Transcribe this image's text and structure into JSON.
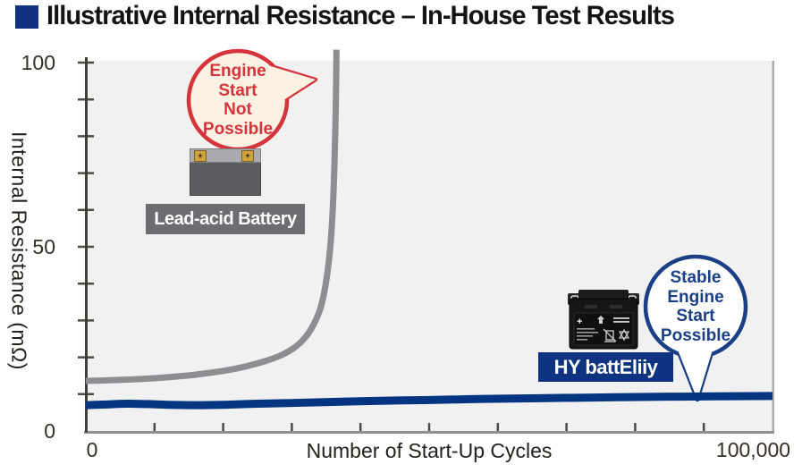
{
  "title": "Illustrative Internal Resistance – In-House Test Results",
  "chart_data": {
    "type": "line",
    "title": "Illustrative Internal Resistance – In-House Test Results",
    "xlabel": "Number of Start-Up Cycles",
    "ylabel": "Internal Resistance (mΩ)",
    "xlim": [
      0,
      100000
    ],
    "ylim": [
      0,
      100
    ],
    "x_tick_step": 10000,
    "y_tick_step": 10,
    "grid": false,
    "legend_position": "none",
    "x_tick_labels": [
      {
        "value": 0,
        "label": "0"
      },
      {
        "value": 100000,
        "label": "100,000"
      }
    ],
    "y_tick_labels": [
      {
        "value": 0,
        "label": "0"
      },
      {
        "value": 50,
        "label": "50"
      },
      {
        "value": 100,
        "label": "100"
      }
    ],
    "series": [
      {
        "name": "Lead-acid Battery",
        "color": "#8c8e91",
        "stroke_width": 7,
        "points": [
          [
            0,
            13.6
          ],
          [
            4000,
            13.8
          ],
          [
            8000,
            14.1
          ],
          [
            12000,
            14.6
          ],
          [
            16000,
            15.3
          ],
          [
            20000,
            16.3
          ],
          [
            23000,
            17.4
          ],
          [
            26000,
            18.9
          ],
          [
            28500,
            20.6
          ],
          [
            30500,
            22.8
          ],
          [
            32000,
            25.5
          ],
          [
            33200,
            29
          ],
          [
            34200,
            33.5
          ],
          [
            34900,
            39.5
          ],
          [
            35500,
            48
          ],
          [
            35900,
            58
          ],
          [
            36200,
            72
          ],
          [
            36400,
            88
          ],
          [
            36500,
            103.5
          ]
        ]
      },
      {
        "name": "HY battEliiy",
        "color": "#053580",
        "stroke_width": 9,
        "points": [
          [
            0,
            7.0
          ],
          [
            3000,
            7.2
          ],
          [
            6000,
            7.4
          ],
          [
            9000,
            7.3
          ],
          [
            12000,
            7.1
          ],
          [
            16000,
            7.0
          ],
          [
            20000,
            7.1
          ],
          [
            25000,
            7.4
          ],
          [
            30000,
            7.6
          ],
          [
            36000,
            7.9
          ],
          [
            43000,
            8.2
          ],
          [
            50000,
            8.4
          ],
          [
            58000,
            8.7
          ],
          [
            66000,
            8.9
          ],
          [
            75000,
            9.1
          ],
          [
            85000,
            9.3
          ],
          [
            100000,
            9.5
          ]
        ]
      }
    ]
  },
  "annotations": {
    "red_bubble": {
      "lines": [
        "Engine",
        "Start",
        "Not",
        "Possible"
      ]
    },
    "blue_bubble": {
      "lines": [
        "Stable",
        "Engine",
        "Start",
        "Possible"
      ]
    },
    "lead_acid_label": "Lead-acid Battery",
    "hy_label": "HY battEliiy",
    "lead_terminal_mark": "+"
  },
  "colors": {
    "title_square": "#123383",
    "plot_bg": "#f1f1f2",
    "axis_dark": "#403c38",
    "axis_gray": "#8e9093",
    "edge_gray": "#aaacaf",
    "tick": "#4e4a45",
    "red": "#d6343c",
    "red_bubble_fill": "#fcf2e4",
    "blue_bubble_stroke": "#1a3f85",
    "navy_plate": "#0e3380",
    "lead_plate": "#6b6d70"
  }
}
